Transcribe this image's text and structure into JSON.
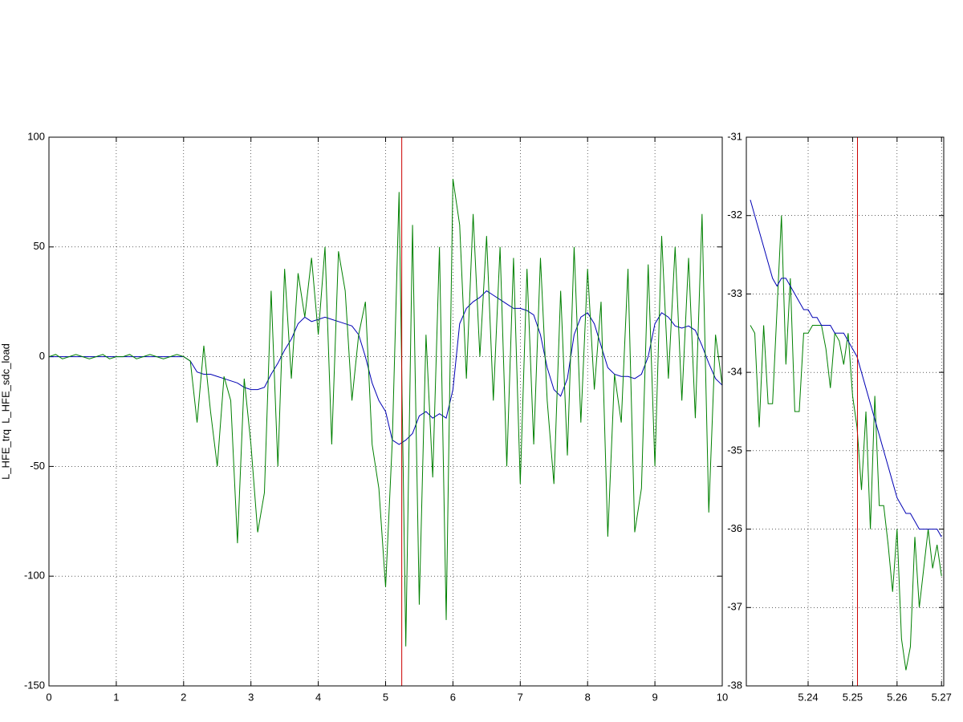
{
  "chart_data": [
    {
      "type": "line",
      "ylabel": "L_HFE_trq  L_HFE_sdc_load",
      "x": [
        0,
        0.1,
        0.2,
        0.3,
        0.4,
        0.5,
        0.6,
        0.7,
        0.8,
        0.9,
        1,
        1.1,
        1.2,
        1.3,
        1.4,
        1.5,
        1.6,
        1.7,
        1.8,
        1.9,
        2,
        2.1,
        2.2,
        2.3,
        2.4,
        2.5,
        2.6,
        2.7,
        2.8,
        2.9,
        3,
        3.1,
        3.2,
        3.3,
        3.4,
        3.5,
        3.6,
        3.7,
        3.8,
        3.9,
        4,
        4.1,
        4.2,
        4.3,
        4.4,
        4.5,
        4.6,
        4.7,
        4.8,
        4.9,
        5,
        5.1,
        5.2,
        5.3,
        5.4,
        5.5,
        5.6,
        5.7,
        5.8,
        5.9,
        6,
        6.1,
        6.2,
        6.3,
        6.4,
        6.5,
        6.6,
        6.7,
        6.8,
        6.9,
        7,
        7.1,
        7.2,
        7.3,
        7.4,
        7.5,
        7.6,
        7.7,
        7.8,
        7.9,
        8,
        8.1,
        8.2,
        8.3,
        8.4,
        8.5,
        8.6,
        8.7,
        8.8,
        8.9,
        9,
        9.1,
        9.2,
        9.3,
        9.4,
        9.5,
        9.6,
        9.7,
        9.8,
        9.9,
        10
      ],
      "series": [
        {
          "color": "#0000b4",
          "values": [
            0,
            0,
            0,
            0,
            0,
            0,
            0,
            0,
            0,
            0,
            0,
            0,
            0,
            0,
            0,
            0,
            0,
            0,
            0,
            0,
            0,
            -2,
            -7,
            -8,
            -8,
            -9,
            -10,
            -11,
            -12,
            -14,
            -15,
            -15,
            -14,
            -8,
            -3,
            3,
            8,
            15,
            18,
            16,
            17,
            18,
            17,
            16,
            15,
            14,
            10,
            0,
            -12,
            -20,
            -25,
            -38,
            -40,
            -38,
            -35,
            -27,
            -25,
            -28,
            -26,
            -28,
            -15,
            15,
            22,
            25,
            27,
            30,
            28,
            26,
            24,
            22,
            22,
            21,
            19,
            10,
            -5,
            -15,
            -18,
            -10,
            10,
            18,
            20,
            15,
            5,
            -5,
            -8,
            -9,
            -9,
            -10,
            -8,
            0,
            15,
            20,
            18,
            14,
            13,
            14,
            12,
            5,
            -3,
            -10,
            -13
          ]
        },
        {
          "color": "#008000",
          "values": [
            0,
            1,
            -1,
            0,
            1,
            0,
            -1,
            0,
            1,
            -1,
            0,
            0,
            1,
            -1,
            0,
            1,
            0,
            -1,
            0,
            1,
            0,
            -2,
            -30,
            5,
            -25,
            -50,
            -9,
            -20,
            -85,
            -10,
            -40,
            -80,
            -62,
            30,
            -50,
            40,
            -10,
            38,
            18,
            45,
            10,
            50,
            -40,
            48,
            30,
            -20,
            10,
            25,
            -40,
            -60,
            -105,
            -38,
            75,
            -132,
            60,
            -113,
            10,
            -55,
            50,
            -120,
            81,
            60,
            -10,
            65,
            0,
            55,
            -20,
            50,
            -50,
            45,
            -58,
            40,
            -40,
            45,
            -20,
            -58,
            30,
            -45,
            50,
            -30,
            40,
            -15,
            25,
            -82,
            -8,
            -30,
            40,
            -80,
            -60,
            42,
            -50,
            55,
            -10,
            50,
            -20,
            45,
            -28,
            65,
            -71,
            10,
            -13
          ]
        }
      ],
      "xlim": [
        0,
        10
      ],
      "ylim": [
        -150,
        100
      ],
      "xticks": [
        0,
        1,
        2,
        3,
        4,
        5,
        6,
        7,
        8,
        9,
        10
      ],
      "yticks": [
        -150,
        -100,
        -50,
        0,
        50,
        100
      ],
      "grid": true,
      "vline": 5.24,
      "vline_color": "#cc0000"
    },
    {
      "type": "line",
      "x": [
        5.227,
        5.228,
        5.229,
        5.23,
        5.231,
        5.232,
        5.233,
        5.234,
        5.235,
        5.236,
        5.237,
        5.238,
        5.239,
        5.24,
        5.241,
        5.242,
        5.243,
        5.244,
        5.245,
        5.246,
        5.247,
        5.248,
        5.249,
        5.25,
        5.251,
        5.252,
        5.253,
        5.254,
        5.255,
        5.256,
        5.257,
        5.258,
        5.259,
        5.26,
        5.261,
        5.262,
        5.263,
        5.264,
        5.265,
        5.266,
        5.267,
        5.268,
        5.269,
        5.27
      ],
      "series": [
        {
          "color": "#008000",
          "values": [
            -33.4,
            -33.5,
            -34.7,
            -33.4,
            -34.4,
            -34.4,
            -33.2,
            -32.0,
            -33.9,
            -32.8,
            -34.5,
            -34.5,
            -33.5,
            -33.5,
            -33.4,
            -33.4,
            -33.4,
            -33.7,
            -34.2,
            -33.5,
            -33.6,
            -33.9,
            -33.5,
            -34.3,
            -34.7,
            -35.5,
            -34.5,
            -36.0,
            -34.3,
            -35.7,
            -35.7,
            -36.2,
            -36.8,
            -36.0,
            -37.4,
            -37.8,
            -37.5,
            -36.1,
            -37.0,
            -36.5,
            -36.0,
            -36.5,
            -36.2,
            -36.6
          ]
        },
        {
          "color": "#0000b4",
          "values": [
            -31.8,
            -32.0,
            -32.2,
            -32.4,
            -32.6,
            -32.8,
            -32.9,
            -32.8,
            -32.8,
            -32.9,
            -33.0,
            -33.1,
            -33.2,
            -33.2,
            -33.3,
            -33.3,
            -33.4,
            -33.4,
            -33.4,
            -33.5,
            -33.5,
            -33.5,
            -33.6,
            -33.7,
            -33.8,
            -34.0,
            -34.2,
            -34.4,
            -34.6,
            -34.8,
            -35.0,
            -35.2,
            -35.4,
            -35.6,
            -35.7,
            -35.8,
            -35.8,
            -35.9,
            -36.0,
            -36.0,
            -36.0,
            -36.0,
            -36.0,
            -36.1
          ]
        }
      ],
      "xlim": [
        5.2261,
        5.2705
      ],
      "ylim": [
        -38,
        -31
      ],
      "xticks": [
        5.24,
        5.25,
        5.26,
        5.27
      ],
      "yticks": [
        -38,
        -37,
        -36,
        -35,
        -34,
        -33,
        -32,
        -31
      ],
      "grid": true,
      "vline": 5.2511,
      "vline_color": "#cc0000"
    }
  ]
}
